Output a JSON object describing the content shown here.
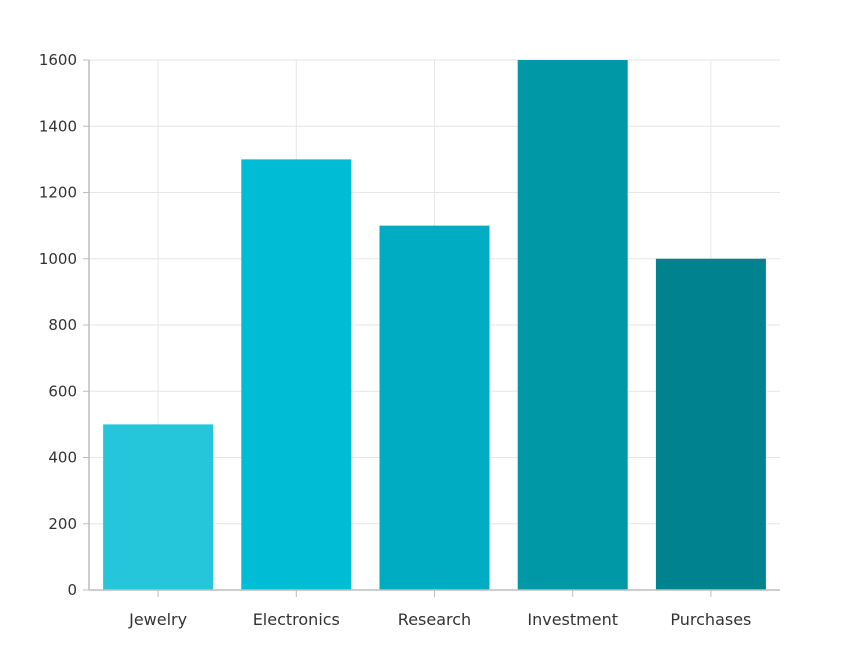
{
  "chart_data": {
    "type": "bar",
    "categories": [
      "Jewelry",
      "Electronics",
      "Research",
      "Investment",
      "Purchases"
    ],
    "values": [
      500,
      1300,
      1100,
      1600,
      1000
    ],
    "colors": [
      "#26C6DA",
      "#00BCD4",
      "#00ACC1",
      "#0097A7",
      "#00838F"
    ],
    "title": "",
    "xlabel": "",
    "ylabel": "",
    "ylim": [
      0,
      1600
    ],
    "yticks": [
      0,
      200,
      400,
      600,
      800,
      1000,
      1200,
      1400,
      1600
    ],
    "grid": true,
    "legend": "none"
  }
}
